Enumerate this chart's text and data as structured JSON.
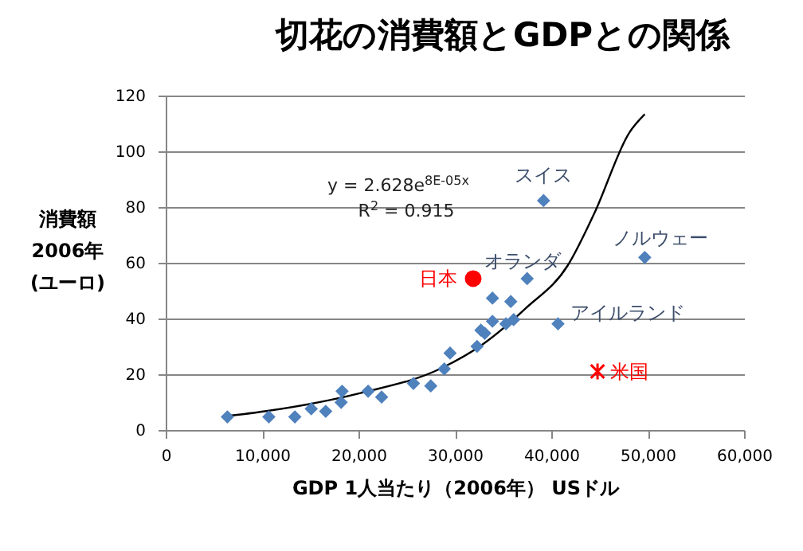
{
  "chart_data": {
    "type": "scatter",
    "title": "切花の消費額とGDPとの関係",
    "xlabel": "GDP 1人当たり（2006年） USドル",
    "ylabel": "消費額\n2006年\n(ユーロ)",
    "xlim": [
      0,
      60000
    ],
    "xticks": [
      0,
      {
        "value": 10000,
        "label": "10,000"
      },
      {
        "value": 20000,
        "label": "20,000"
      },
      {
        "value": 30000,
        "label": "30,000"
      },
      {
        "value": 40000,
        "label": "40,000"
      },
      {
        "value": 50000,
        "label": "50,000"
      },
      {
        "value": 60000,
        "label": "60,000"
      }
    ],
    "ylim": [
      0,
      120
    ],
    "yticks": [
      0,
      20,
      40,
      60,
      80,
      100,
      120
    ],
    "grid": "y",
    "series": [
      {
        "color": "#4f81bd",
        "marker": "diamond",
        "x": [
          6400,
          10700,
          13400,
          15100,
          16600,
          18200,
          18300,
          21000,
          22400,
          25700,
          27500,
          28900,
          29500,
          32300,
          32700,
          33100,
          33900,
          33900,
          35300,
          35800,
          36100,
          37500,
          39200,
          49700,
          40700
        ],
        "values": [
          4.7,
          4.7,
          4.7,
          7.6,
          6.7,
          9.9,
          13.9,
          13.9,
          11.8,
          16.7,
          15.8,
          21.9,
          27.6,
          30,
          35.8,
          34.7,
          39,
          47.3,
          38.1,
          46.1,
          39.6,
          54.3,
          82.3,
          61.9,
          38.1
        ]
      },
      {
        "name": "日本",
        "color": "#ff0000",
        "marker": "circle",
        "x": [
          31900
        ],
        "values": [
          54.3
        ]
      },
      {
        "name": "米国",
        "color": "#ff0000",
        "marker": "cross",
        "x": [
          44800
        ],
        "values": [
          21
        ]
      },
      {
        "type": "line",
        "color": "#000000",
        "x": [
          6400,
          10300,
          20300,
          28500,
          33000,
          37400,
          41700,
          44500,
          48100,
          49700
        ],
        "values": [
          5,
          6.7,
          13.3,
          22,
          31,
          43.8,
          59,
          78,
          106.7,
          113.3
        ]
      }
    ],
    "annotations": [
      "y = 2.628e$^{8E-05x}$",
      "R$^{2}$ = 0.915",
      {
        "text": "スイス",
        "x": 39200,
        "y": 82.3
      },
      {
        "text": "ノルウェー",
        "x": 49700,
        "y": 61.9
      },
      {
        "text": "オランダ",
        "x": 37500,
        "y": 54.3
      },
      {
        "text": "アイルランド",
        "x": 40700,
        "y": 38.1
      }
    ]
  }
}
